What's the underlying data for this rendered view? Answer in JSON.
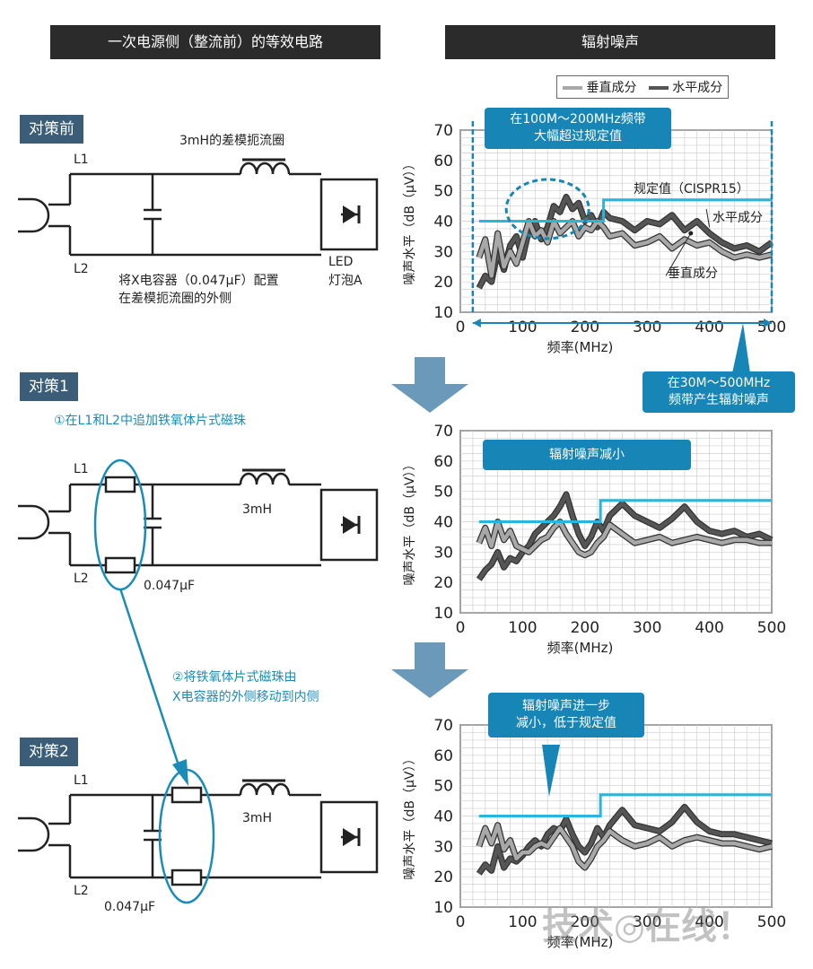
{
  "headers": {
    "left": "一次电源侧（整流前）的等效电路",
    "right": "辐射噪声"
  },
  "legend": {
    "vertical": "垂直成分",
    "horizontal": "水平成分"
  },
  "sections": [
    {
      "tag": "对策前",
      "coil_label": "3mH的差模扼流圈",
      "l1": "L1",
      "l2": "L2",
      "note_line1": "将X电容器（0.047μF）配置",
      "note_line2": "在差模扼流圈的外侧",
      "led_line1": "LED",
      "led_line2": "灯泡A"
    },
    {
      "tag": "对策1",
      "instruction": "①在L1和L2中追加铁氧体片式磁珠",
      "l1": "L1",
      "l2": "L2",
      "coil_label": "3mH",
      "cap_label": "0.047μF"
    },
    {
      "tag": "对策2",
      "l1": "L1",
      "l2": "L2",
      "coil_label": "3mH",
      "cap_label": "0.047μF"
    }
  ],
  "move_instruction": {
    "line1": "②将铁氧体片式磁珠由",
    "line2": "X电容器的外侧移动到内侧"
  },
  "callouts": {
    "c1_line1": "在100M～200MHz频带",
    "c1_line2": "大幅超过规定值",
    "limit_label": "规定值（CISPR15）",
    "horiz_label": "水平成分",
    "vert_label": "垂直成分",
    "c2_line1": "在30M～500MHz",
    "c2_line2": "频带产生辐射噪声",
    "c3": "辐射噪声减小",
    "c4_line1": "辐射噪声进一步",
    "c4_line2": "减小，低于规定值"
  },
  "watermark": "技术◎在线！",
  "chart_data": [
    {
      "type": "line",
      "title": "",
      "xlabel": "频率(MHz)",
      "ylabel": "噪声水平（dB（μV））",
      "xlim": [
        0,
        500
      ],
      "ylim": [
        10,
        70
      ],
      "xticks": [
        0,
        100,
        200,
        300,
        400,
        500
      ],
      "yticks": [
        10,
        20,
        30,
        40,
        50,
        60,
        70
      ],
      "grid": true,
      "limit": {
        "x": [
          30,
          230,
          230,
          500
        ],
        "y": [
          40,
          40,
          47,
          47
        ]
      },
      "series": [
        {
          "name": "水平成分",
          "color": "#555555",
          "x": [
            30,
            40,
            50,
            60,
            70,
            80,
            90,
            100,
            110,
            120,
            130,
            140,
            150,
            160,
            170,
            180,
            190,
            200,
            210,
            220,
            230,
            240,
            260,
            280,
            300,
            320,
            340,
            360,
            380,
            400,
            420,
            440,
            460,
            480,
            500
          ],
          "y": [
            18,
            22,
            20,
            30,
            24,
            32,
            35,
            28,
            37,
            40,
            34,
            38,
            45,
            43,
            48,
            44,
            46,
            40,
            42,
            38,
            43,
            41,
            40,
            37,
            40,
            39,
            42,
            37,
            40,
            36,
            33,
            31,
            32,
            30,
            33
          ]
        },
        {
          "name": "垂直成分",
          "color": "#a8a8a8",
          "x": [
            30,
            40,
            50,
            60,
            70,
            80,
            90,
            100,
            110,
            120,
            130,
            140,
            150,
            160,
            170,
            180,
            190,
            200,
            210,
            220,
            230,
            240,
            260,
            280,
            300,
            320,
            340,
            360,
            380,
            400,
            420,
            440,
            460,
            480,
            500
          ],
          "y": [
            28,
            34,
            22,
            36,
            25,
            30,
            26,
            33,
            40,
            35,
            37,
            33,
            40,
            36,
            38,
            40,
            35,
            38,
            37,
            40,
            38,
            35,
            36,
            32,
            33,
            35,
            31,
            34,
            32,
            33,
            30,
            28,
            29,
            28,
            29
          ]
        }
      ]
    },
    {
      "type": "line",
      "title": "",
      "xlabel": "频率(MHz)",
      "ylabel": "噪声水平（dB（μV））",
      "xlim": [
        0,
        500
      ],
      "ylim": [
        10,
        70
      ],
      "xticks": [
        0,
        100,
        200,
        300,
        400,
        500
      ],
      "yticks": [
        10,
        20,
        30,
        40,
        50,
        60,
        70
      ],
      "grid": true,
      "limit": {
        "x": [
          30,
          225,
          225,
          500
        ],
        "y": [
          40,
          40,
          47,
          47
        ]
      },
      "series": [
        {
          "name": "水平成分",
          "color": "#555555",
          "x": [
            30,
            40,
            50,
            60,
            70,
            80,
            90,
            100,
            110,
            120,
            130,
            140,
            150,
            160,
            170,
            180,
            190,
            200,
            210,
            220,
            230,
            240,
            260,
            280,
            300,
            320,
            340,
            360,
            380,
            400,
            420,
            440,
            460,
            480,
            500
          ],
          "y": [
            21,
            24,
            26,
            30,
            25,
            28,
            27,
            30,
            32,
            36,
            38,
            40,
            42,
            45,
            49,
            42,
            36,
            32,
            35,
            40,
            37,
            42,
            46,
            42,
            40,
            38,
            41,
            45,
            40,
            37,
            36,
            37,
            35,
            36,
            34
          ]
        },
        {
          "name": "垂直成分",
          "color": "#a8a8a8",
          "x": [
            30,
            40,
            50,
            60,
            70,
            80,
            90,
            100,
            110,
            120,
            130,
            140,
            150,
            160,
            170,
            180,
            190,
            200,
            210,
            220,
            230,
            240,
            260,
            280,
            300,
            320,
            340,
            360,
            380,
            400,
            420,
            440,
            460,
            480,
            500
          ],
          "y": [
            33,
            38,
            32,
            40,
            34,
            37,
            32,
            31,
            30,
            32,
            34,
            35,
            38,
            40,
            36,
            33,
            30,
            29,
            30,
            33,
            35,
            39,
            36,
            33,
            34,
            35,
            33,
            34,
            35,
            34,
            33,
            34,
            34,
            33,
            33
          ]
        }
      ]
    },
    {
      "type": "line",
      "title": "",
      "xlabel": "频率(MHz)",
      "ylabel": "噪声水平（dB（μV））",
      "xlim": [
        0,
        500
      ],
      "ylim": [
        10,
        70
      ],
      "xticks": [
        0,
        100,
        200,
        300,
        400,
        500
      ],
      "yticks": [
        10,
        20,
        30,
        40,
        50,
        60,
        70
      ],
      "grid": true,
      "limit": {
        "x": [
          30,
          225,
          225,
          500
        ],
        "y": [
          40,
          40,
          47,
          47
        ]
      },
      "series": [
        {
          "name": "水平成分",
          "color": "#555555",
          "x": [
            30,
            40,
            50,
            60,
            70,
            80,
            90,
            100,
            110,
            120,
            130,
            140,
            150,
            160,
            170,
            180,
            190,
            200,
            210,
            220,
            230,
            240,
            260,
            280,
            300,
            320,
            340,
            360,
            380,
            400,
            420,
            440,
            460,
            480,
            500
          ],
          "y": [
            21,
            24,
            22,
            30,
            23,
            26,
            25,
            27,
            30,
            32,
            30,
            34,
            36,
            35,
            39,
            34,
            30,
            28,
            31,
            36,
            33,
            37,
            42,
            37,
            36,
            35,
            38,
            43,
            38,
            35,
            34,
            34,
            33,
            32,
            31
          ]
        },
        {
          "name": "垂直成分",
          "color": "#a8a8a8",
          "x": [
            30,
            40,
            50,
            60,
            70,
            80,
            90,
            100,
            110,
            120,
            130,
            140,
            150,
            160,
            170,
            180,
            190,
            200,
            210,
            220,
            230,
            240,
            260,
            280,
            300,
            320,
            340,
            360,
            380,
            400,
            420,
            440,
            460,
            480,
            500
          ],
          "y": [
            30,
            36,
            31,
            37,
            29,
            32,
            26,
            28,
            28,
            30,
            31,
            30,
            33,
            36,
            33,
            30,
            25,
            23,
            26,
            30,
            32,
            35,
            32,
            30,
            31,
            33,
            30,
            32,
            33,
            32,
            31,
            31,
            30,
            29,
            30
          ]
        }
      ]
    }
  ]
}
